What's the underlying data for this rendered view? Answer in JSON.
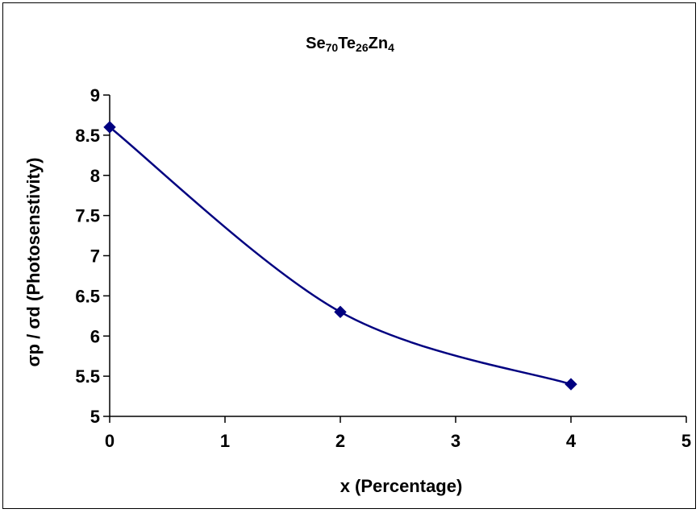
{
  "chart_data": {
    "type": "line",
    "title": {
      "parts": [
        {
          "text": "Se",
          "sub": false
        },
        {
          "text": "70",
          "sub": true
        },
        {
          "text": "Te",
          "sub": false
        },
        {
          "text": "26",
          "sub": true
        },
        {
          "text": "Zn",
          "sub": false
        },
        {
          "text": "4",
          "sub": true
        }
      ]
    },
    "xlabel": "x (Percentage)",
    "ylabel": "σp / σd (Photosenstivity)",
    "xlim": [
      0,
      5
    ],
    "ylim": [
      5,
      9
    ],
    "xticks": [
      "0",
      "1",
      "2",
      "3",
      "4",
      "5"
    ],
    "yticks": [
      "5",
      "5.5",
      "6",
      "6.5",
      "7",
      "7.5",
      "8",
      "8.5",
      "9"
    ],
    "grid": false,
    "legend": "none",
    "smooth": true,
    "series": [
      {
        "color": "#000080",
        "marker": "diamond",
        "x": [
          0,
          2,
          4
        ],
        "y": [
          8.6,
          6.3,
          5.4
        ]
      }
    ]
  }
}
